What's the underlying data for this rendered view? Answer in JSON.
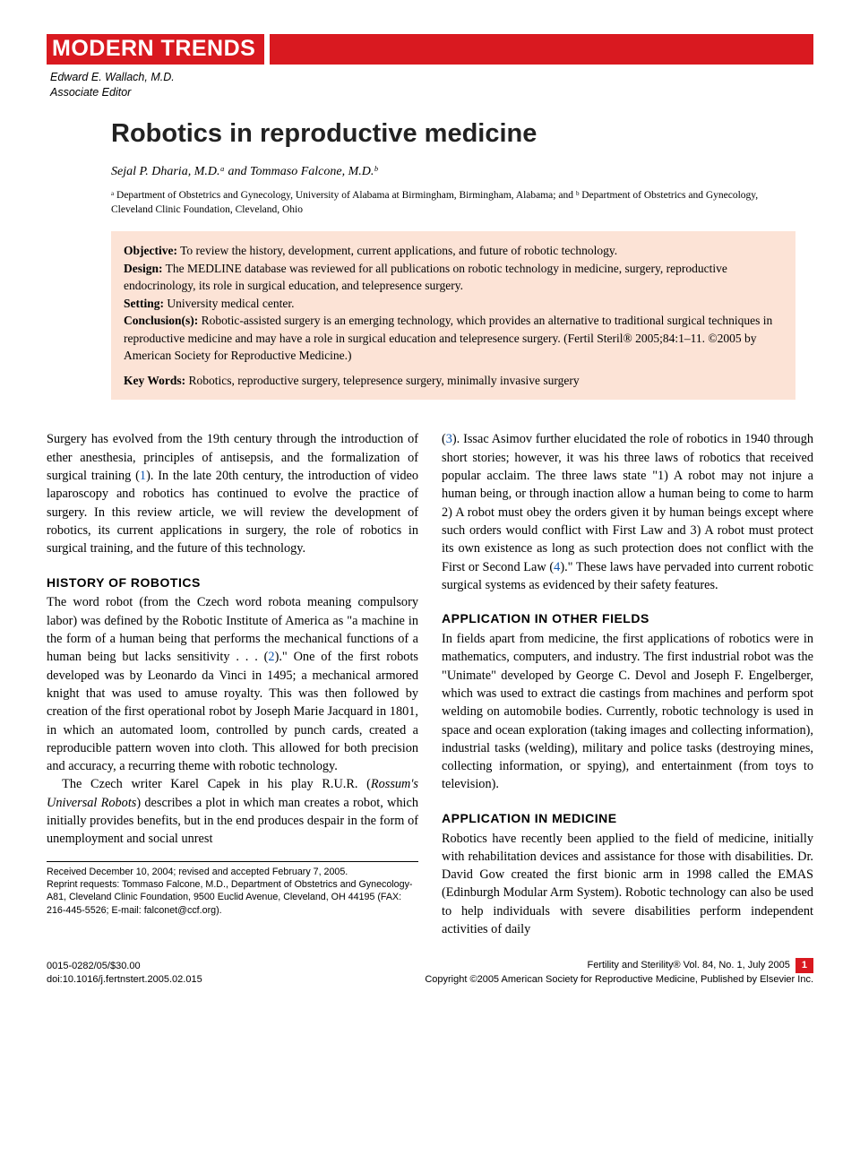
{
  "colors": {
    "red": "#d91920",
    "abstract_bg": "#fce3d6",
    "link_blue": "#1258b0",
    "text": "#000000",
    "bg": "#ffffff"
  },
  "header": {
    "section_label": "MODERN TRENDS",
    "editor_name": "Edward E. Wallach, M.D.",
    "editor_role": "Associate Editor"
  },
  "article": {
    "title": "Robotics in reproductive medicine",
    "authors_html": "Sejal P. Dharia, M.D.ᵃ and Tommaso Falcone, M.D.ᵇ",
    "affiliations_html": "ᵃ Department of Obstetrics and Gynecology, University of Alabama at Birmingham, Birmingham, Alabama; and ᵇ Department of Obstetrics and Gynecology, Cleveland Clinic Foundation, Cleveland, Ohio"
  },
  "abstract": {
    "objective_label": "Objective:",
    "objective": " To review the history, development, current applications, and future of robotic technology.",
    "design_label": "Design:",
    "design": " The MEDLINE database was reviewed for all publications on robotic technology in medicine, surgery, reproductive endocrinology, its role in surgical education, and telepresence surgery.",
    "setting_label": "Setting:",
    "setting": " University medical center.",
    "conclusion_label": "Conclusion(s):",
    "conclusion": " Robotic-assisted surgery is an emerging technology, which provides an alternative to traditional surgical techniques in reproductive medicine and may have a role in surgical education and telepresence surgery. (Fertil Steril® 2005;84:1–11. ©2005 by American Society for Reproductive Medicine.)",
    "keywords_label": "Key Words:",
    "keywords": " Robotics, reproductive surgery, telepresence surgery, minimally invasive surgery"
  },
  "body": {
    "left": {
      "intro": "Surgery has evolved from the 19th century through the introduction of ether anesthesia, principles of antisepsis, and the formalization of surgical training (",
      "intro_ref": "1",
      "intro_cont": "). In the late 20th century, the introduction of video laparoscopy and robotics has continued to evolve the practice of surgery. In this review article, we will review the development of robotics, its current applications in surgery, the role of robotics in surgical training, and the future of this technology.",
      "h1": "HISTORY OF ROBOTICS",
      "p1a": "The word robot (from the Czech word robota meaning compulsory labor) was defined by the Robotic Institute of America as \"a machine in the form of a human being that performs the mechanical functions of a human being but lacks sensitivity . . . (",
      "p1_ref": "2",
      "p1b": ").\" One of the first robots developed was by Leonardo da Vinci in 1495; a mechanical armored knight that was used to amuse royalty. This was then followed by creation of the first operational robot by Joseph Marie Jacquard in 1801, in which an automated loom, controlled by punch cards, created a reproducible pattern woven into cloth. This allowed for both precision and accuracy, a recurring theme with robotic technology.",
      "p2a": "The Czech writer Karel Capek in his play R.U.R. (",
      "p2_ital": "Rossum's Universal Robots",
      "p2b": ") describes a plot in which man creates a robot, which initially provides benefits, but in the end produces despair in the form of unemployment and social unrest"
    },
    "right": {
      "p0a": "(",
      "p0_ref": "3",
      "p0b": "). Issac Asimov further elucidated the role of robotics in 1940 through short stories; however, it was his three laws of robotics that received popular acclaim. The three laws state \"1) A robot may not injure a human being, or through inaction allow a human being to come to harm 2) A robot must obey the orders given it by human beings except where such orders would conflict with First Law and 3) A robot must protect its own existence as long as such protection does not conflict with the First or Second Law (",
      "p0_ref2": "4",
      "p0c": ").\" These laws have pervaded into current robotic surgical systems as evidenced by their safety features.",
      "h2": "APPLICATION IN OTHER FIELDS",
      "p3": "In fields apart from medicine, the first applications of robotics were in mathematics, computers, and industry. The first industrial robot was the \"Unimate\" developed by George C. Devol and Joseph F. Engelberger, which was used to extract die castings from machines and perform spot welding on automobile bodies. Currently, robotic technology is used in space and ocean exploration (taking images and collecting information), industrial tasks (welding), military and police tasks (destroying mines, collecting information, or spying), and entertainment (from toys to television).",
      "h3": "APPLICATION IN MEDICINE",
      "p4": "Robotics have recently been applied to the field of medicine, initially with rehabilitation devices and assistance for those with disabilities. Dr. David Gow created the first bionic arm in 1998 called the EMAS (Edinburgh Modular Arm System). Robotic technology can also be used to help individuals with severe disabilities perform independent activities of daily"
    }
  },
  "footnote": {
    "received": "Received December 10, 2004; revised and accepted February 7, 2005.",
    "reprint": "Reprint requests: Tommaso Falcone, M.D., Department of Obstetrics and Gynecology-A81, Cleveland Clinic Foundation, 9500 Euclid Avenue, Cleveland, OH 44195 (FAX: 216-445-5526; E-mail: falconet@ccf.org)."
  },
  "footer": {
    "left_line1": "0015-0282/05/$30.00",
    "left_line2": "doi:10.1016/j.fertnstert.2005.02.015",
    "right_line1": "Fertility and Sterility® Vol. 84, No. 1, July 2005",
    "right_line2": "Copyright ©2005 American Society for Reproductive Medicine, Published by Elsevier Inc.",
    "page_num": "1"
  }
}
